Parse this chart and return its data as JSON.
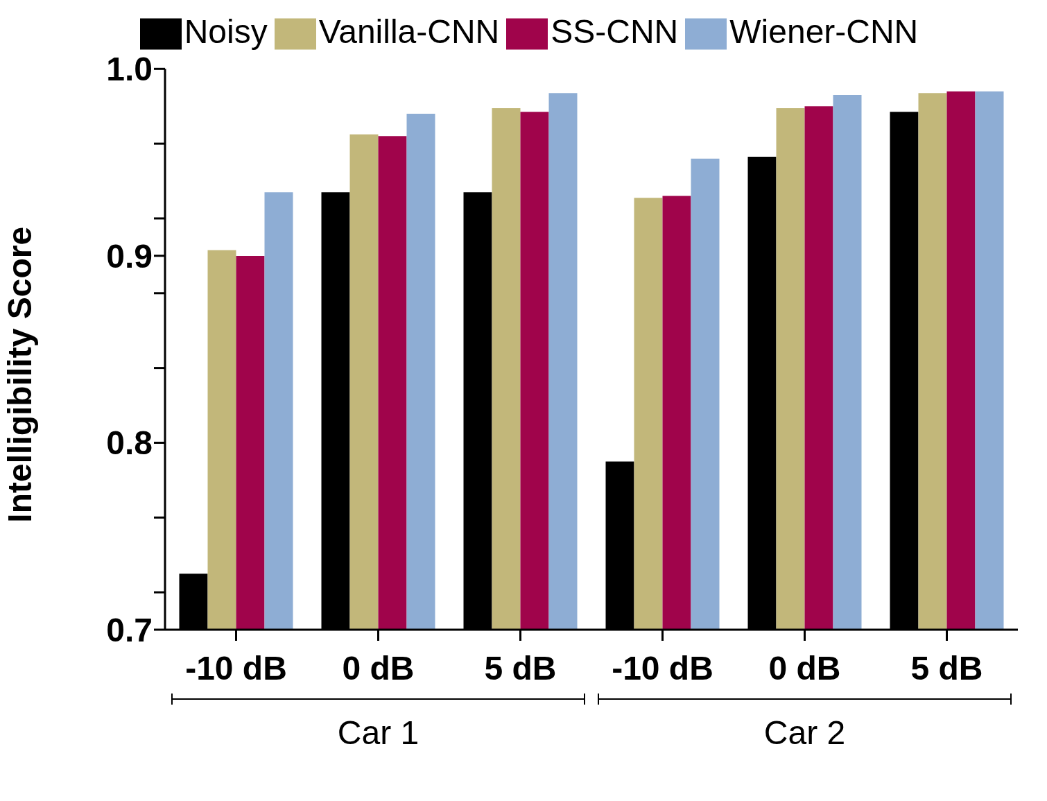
{
  "chart_data": {
    "type": "bar",
    "ylabel": "Intelligibility Score",
    "categories": [
      "-10 dB",
      "0 dB",
      "5 dB",
      "-10 dB",
      "0 dB",
      "5 dB"
    ],
    "series": [
      {
        "name": "Noisy",
        "color": "#000000",
        "values": [
          0.73,
          0.934,
          0.934,
          0.79,
          0.953,
          0.977
        ]
      },
      {
        "name": "Vanilla-CNN",
        "color": "#c2b77a",
        "values": [
          0.903,
          0.965,
          0.979,
          0.931,
          0.979,
          0.987
        ]
      },
      {
        "name": "SS-CNN",
        "color": "#a0044b",
        "values": [
          0.9,
          0.964,
          0.977,
          0.932,
          0.98,
          0.988
        ]
      },
      {
        "name": "Wiener-CNN",
        "color": "#8eadd4",
        "values": [
          0.934,
          0.976,
          0.987,
          0.952,
          0.986,
          0.988
        ]
      }
    ],
    "ylim": [
      0.7,
      1.0
    ],
    "yticks": [
      0.7,
      {
        "value": 0.72,
        "label": null
      },
      {
        "value": 0.76,
        "label": null
      },
      0.8,
      {
        "value": 0.84,
        "label": null
      },
      {
        "value": 0.88,
        "label": null
      },
      0.9,
      {
        "value": 0.92,
        "label": null
      },
      {
        "value": 0.96,
        "label": null
      },
      {
        "value": 1,
        "label": "1.0"
      }
    ],
    "annotations": [
      "Car 1",
      "Car 2"
    ],
    "grid": false,
    "legend": "top"
  }
}
